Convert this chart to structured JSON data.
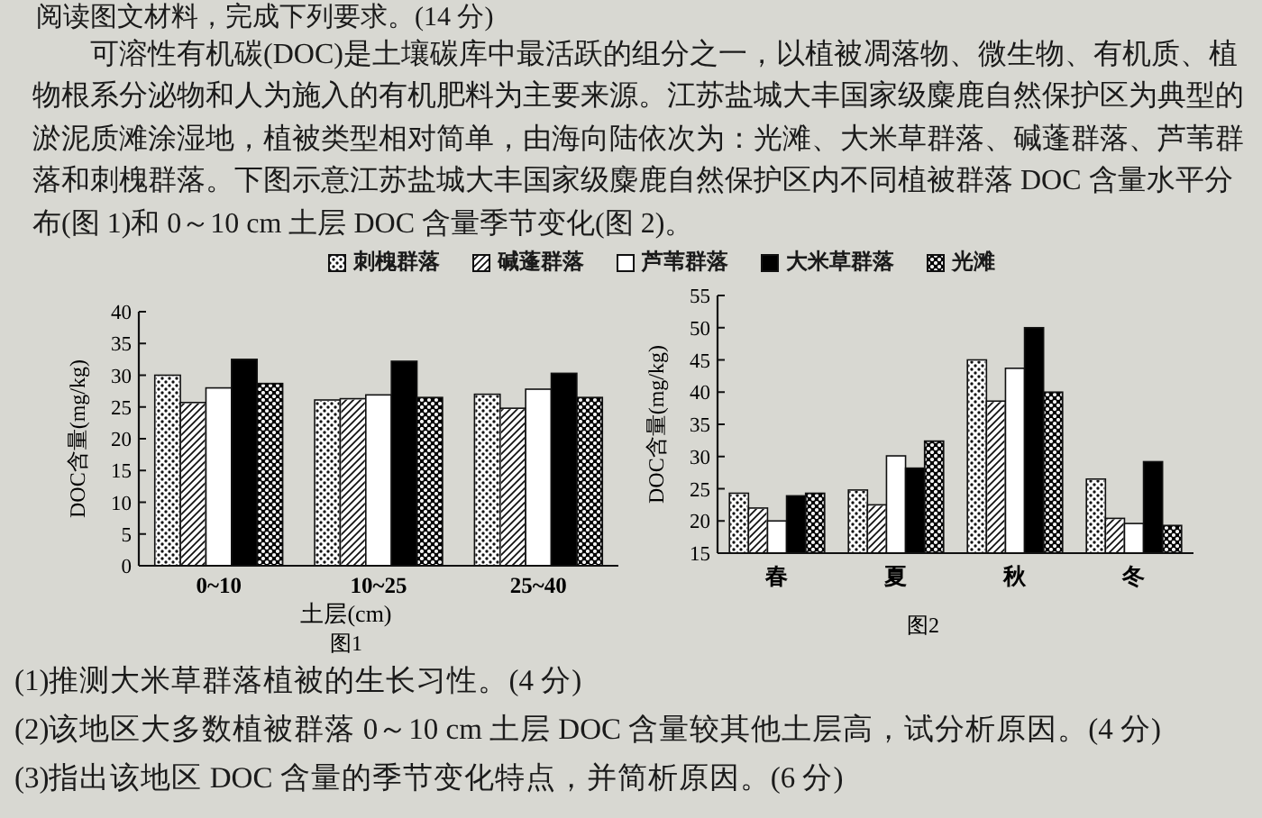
{
  "chart_data": [
    {
      "type": "other",
      "annotations": [
        "阅读图文材料，完成下列要求。(14 分)",
        "可溶性有机碳(DOC)是土壤碳库中最活跃的组分之一，以植被凋落物、微生物、有机质、植物根系分泌物和人为施入的有机肥料为主要来源。江苏盐城大丰国家级麋鹿自然保护区为典型的淤泥质滩涂湿地，植被类型相对简单，由海向陆依次为：光滩、大米草群落、碱蓬群落、芦苇群落和刺槐群落。下图示意江苏盐城大丰国家级麋鹿自然保护区内不同植被群落 DOC 含量水平分布(图 1)和 0～10 cm 土层 DOC 含量季节变化(图 2)。"
      ]
    },
    {
      "type": "bar",
      "title": "图1",
      "xlabel": "土层(cm)",
      "ylabel": "DOC含量(mg/kg)",
      "categories": [
        "0~10",
        "10~25",
        "25~40"
      ],
      "series": [
        {
          "name": "刺槐群落",
          "color": "#ffffff",
          "values": [
            30,
            26.1,
            27
          ]
        },
        {
          "name": "碱蓬群落",
          "color": "#ffffff",
          "values": [
            25.7,
            26.3,
            24.8
          ]
        },
        {
          "name": "芦苇群落",
          "color": "#ffffff",
          "values": [
            28,
            26.9,
            27.8
          ]
        },
        {
          "name": "大米草群落",
          "color": "#000000",
          "values": [
            32.5,
            32.2,
            30.3
          ]
        },
        {
          "name": "光滩",
          "color": "#000000",
          "values": [
            28.7,
            26.5,
            26.5
          ]
        }
      ],
      "ylim": [
        0,
        40
      ],
      "yticks": [
        0,
        5,
        10,
        15,
        20,
        25,
        30,
        35,
        40
      ],
      "legend": "top"
    },
    {
      "type": "bar",
      "title": "图2",
      "ylabel": "DOC含量(mg/kg)",
      "categories": [
        "春",
        "夏",
        "秋",
        "冬"
      ],
      "series": [
        {
          "color": "#ffffff",
          "values": [
            24.3,
            24.8,
            45,
            26.5
          ]
        },
        {
          "color": "#ffffff",
          "values": [
            22,
            22.5,
            38.6,
            20.4
          ]
        },
        {
          "color": "#ffffff",
          "values": [
            20,
            30.1,
            43.7,
            19.6
          ]
        },
        {
          "color": "#000000",
          "values": [
            23.9,
            28.2,
            50,
            29.2
          ]
        },
        {
          "color": "#000000",
          "values": [
            24.3,
            32.4,
            40,
            19.3
          ]
        }
      ],
      "ylim": [
        15,
        55
      ],
      "yticks": [
        15,
        20,
        25,
        30,
        35,
        40,
        45,
        50,
        55
      ]
    },
    {
      "type": "other",
      "annotations": [
        "(1)推测大米草群落植被的生长习性。(4 分)",
        "(2)该地区大多数植被群落 0～10 cm 土层 DOC 含量较其他土层高，试分析原因。(4 分)",
        "(3)指出该地区 DOC 含量的季节变化特点，并简析原因。(6 分)"
      ]
    }
  ]
}
